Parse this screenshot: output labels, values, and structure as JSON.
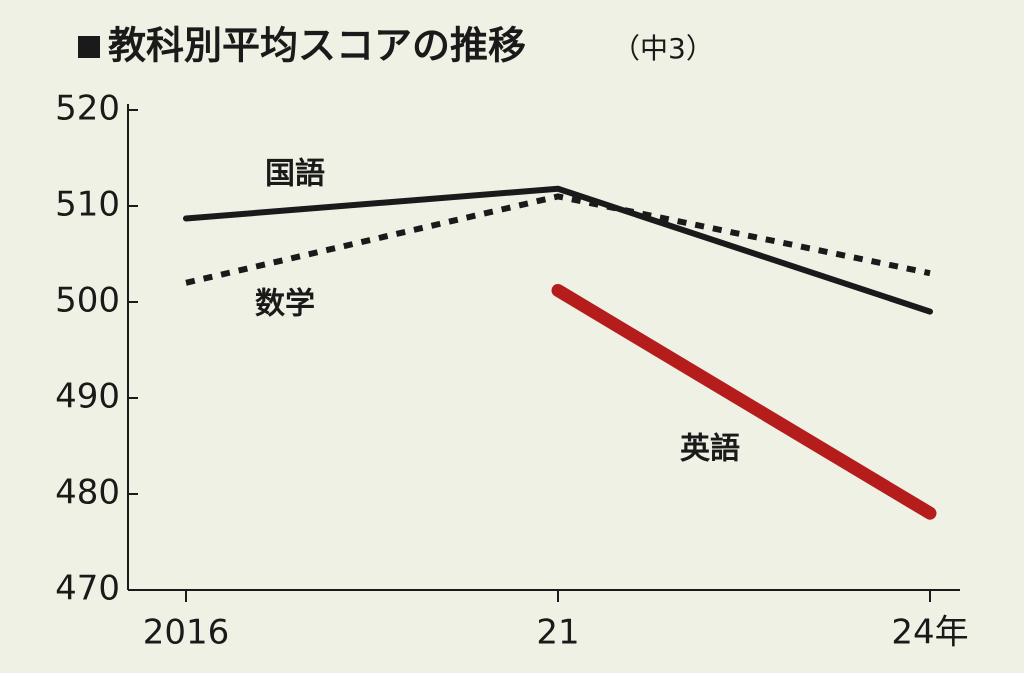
{
  "chart_data": {
    "type": "line",
    "title": "教科別平均スコアの推移",
    "subtitle": "（中3）",
    "categories": [
      "2016",
      "21",
      "24年"
    ],
    "series": [
      {
        "name": "国語",
        "color": "#1a1a1a",
        "values": [
          508.7,
          511.8,
          499
        ],
        "dashed": false
      },
      {
        "name": "数学",
        "color": "#1a1a1a",
        "values": [
          502,
          511,
          503
        ],
        "dashed": true
      },
      {
        "name": "英語",
        "color": "#b51c1c",
        "values": [
          null,
          501.2,
          478
        ],
        "dashed": false
      }
    ],
    "ylim": [
      470,
      520
    ],
    "yticks": [
      470,
      480,
      490,
      500,
      510,
      520
    ],
    "grid": false
  }
}
